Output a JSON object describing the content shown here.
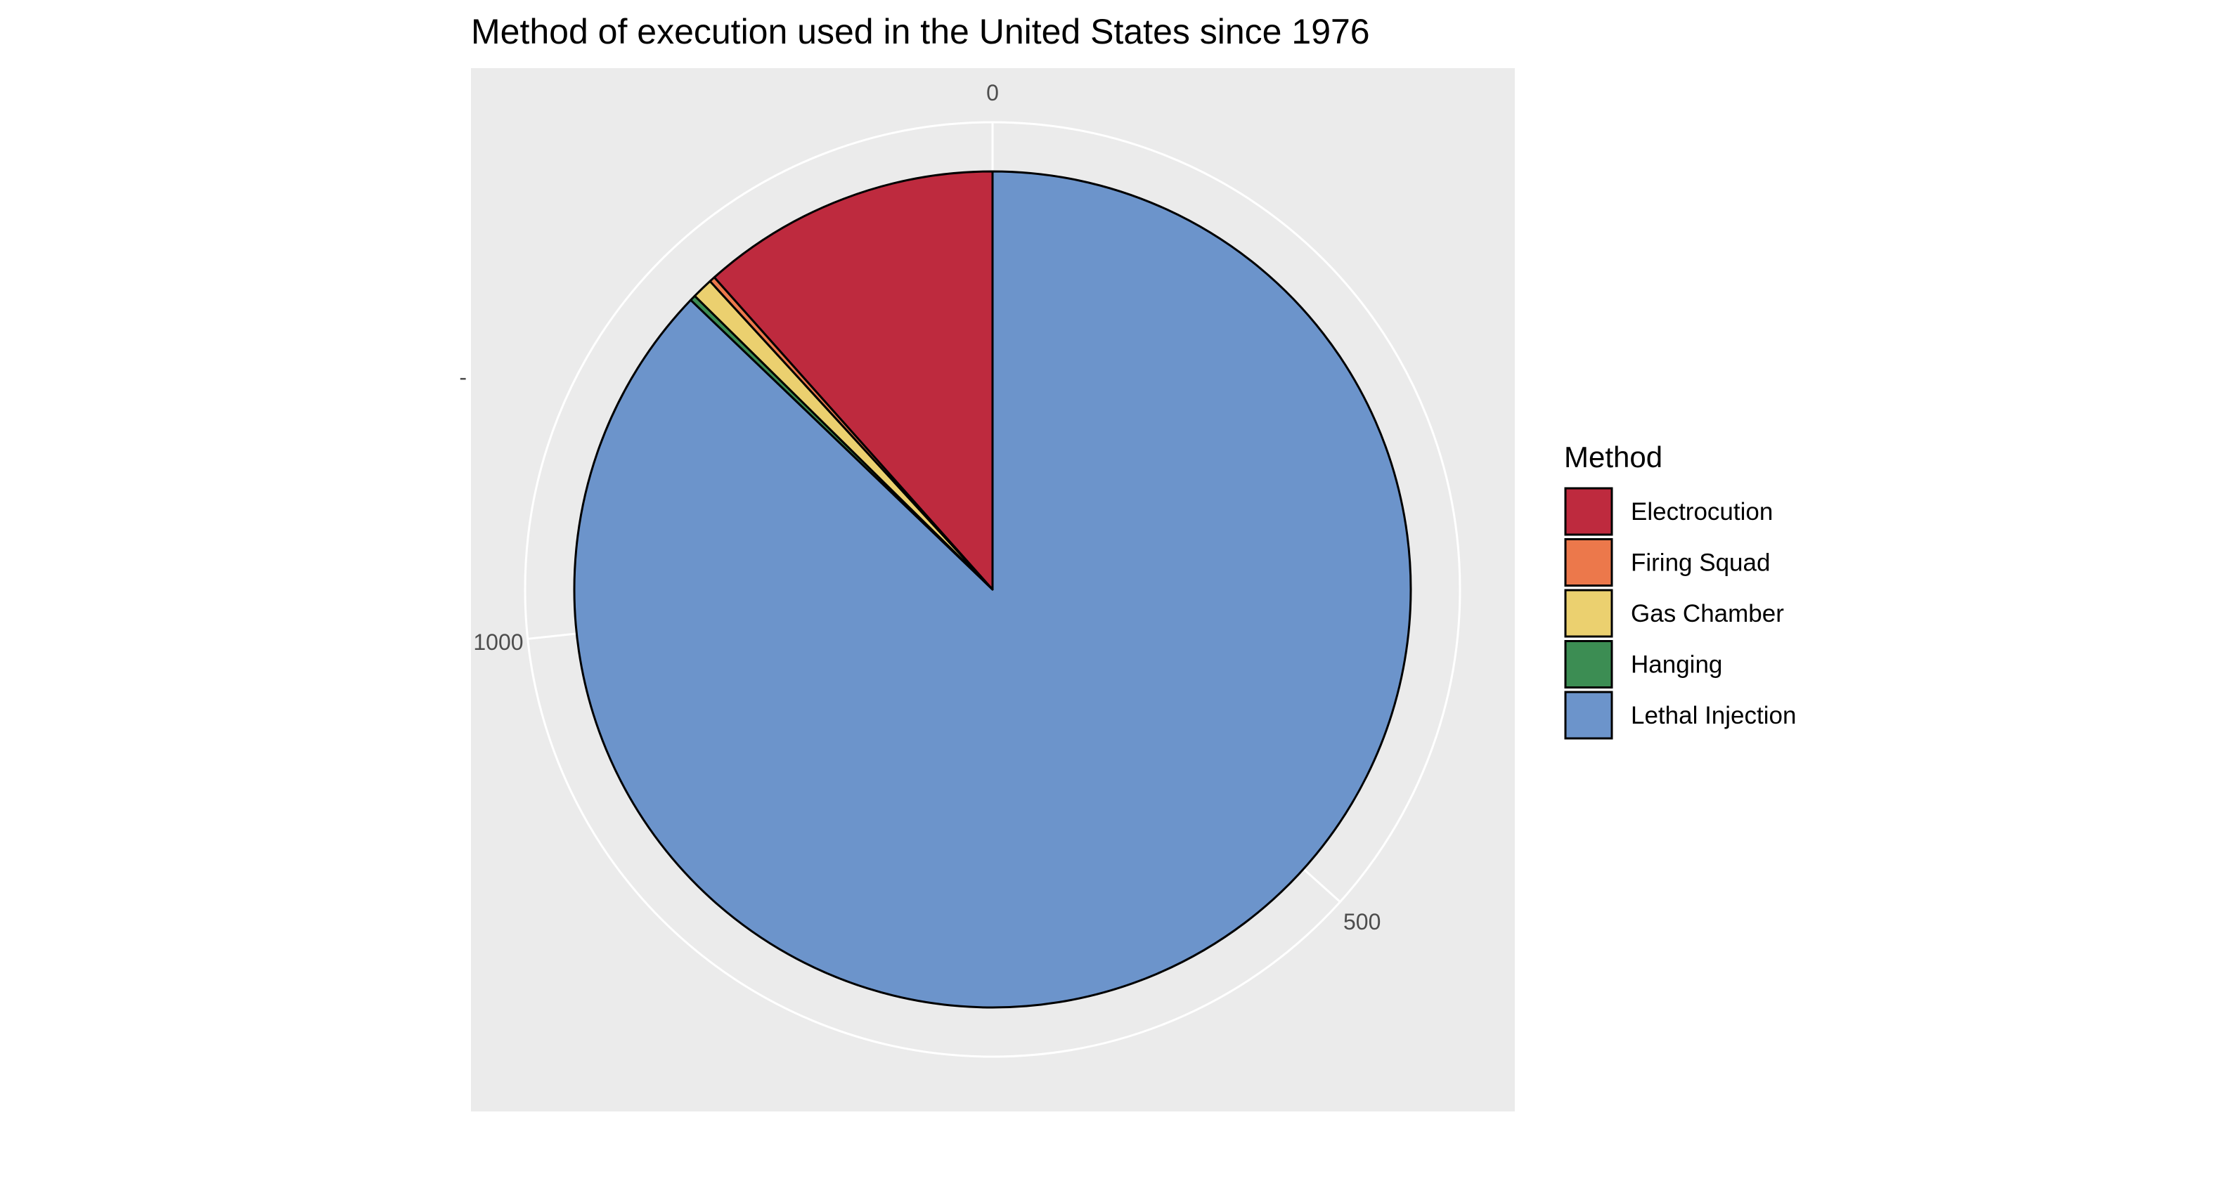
{
  "chart_data": {
    "type": "pie",
    "title": "Method of execution used in the United States since 1976",
    "xlabel": "",
    "ylabel": "",
    "y_axis_tick": "-",
    "categories": [
      "Electrocution",
      "Firing Squad",
      "Gas Chamber",
      "Hanging",
      "Lethal Injection"
    ],
    "values": [
      158,
      3,
      11,
      3,
      1189
    ],
    "colors": [
      "#BE2A3E",
      "#EC784B",
      "#EBD06F",
      "#3C8D53",
      "#6C94CB"
    ],
    "radial_axis": {
      "ticks": [
        0,
        500,
        1000
      ],
      "labels": [
        "0",
        "500",
        "1000"
      ],
      "range": [
        0,
        1364
      ]
    },
    "legend": {
      "title": "Method",
      "position": "right"
    },
    "panel_background": "#EBEBEB",
    "grid_color": "#FFFFFF",
    "slice_outline": "#000000"
  }
}
